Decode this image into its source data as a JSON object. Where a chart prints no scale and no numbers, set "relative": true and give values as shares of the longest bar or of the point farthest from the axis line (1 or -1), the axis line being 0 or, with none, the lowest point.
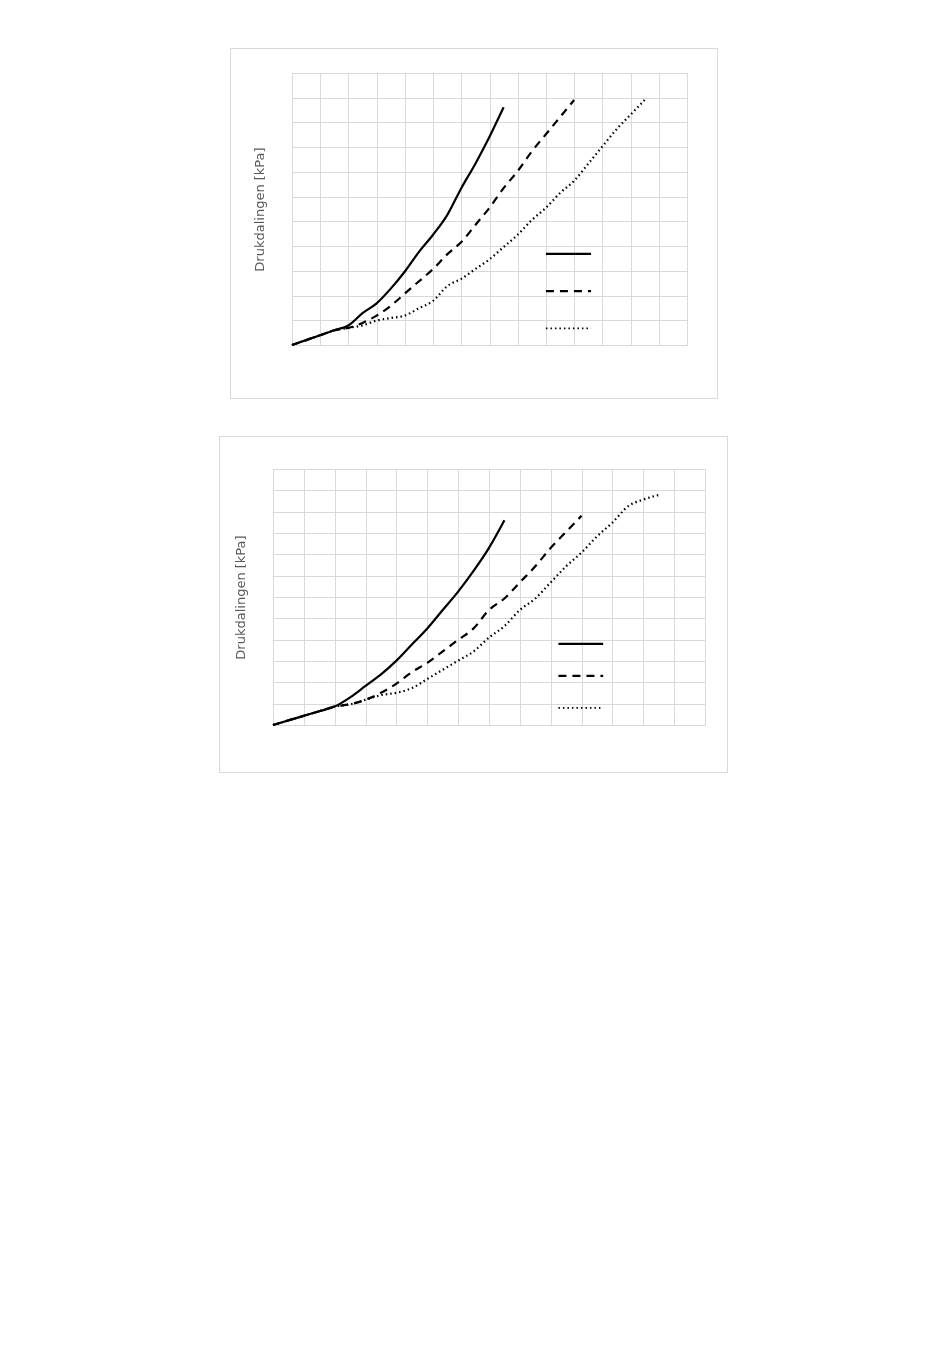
{
  "chart_data": [
    {
      "type": "line",
      "ylabel": "Drukdalingen [kPa]",
      "relative": true,
      "grid": true,
      "tick_labels": false,
      "categories": [
        null,
        null,
        null,
        null,
        null,
        null,
        null,
        null,
        null,
        null,
        null,
        null,
        null,
        null,
        null,
        null,
        null,
        null,
        null,
        null,
        null,
        null,
        null,
        null,
        null,
        null,
        null,
        null,
        null
      ],
      "series": [
        {
          "color": "#000000",
          "line_style": "solid",
          "values": [
            0,
            0.02,
            0.04,
            0.06,
            0.08,
            0.13,
            0.17,
            0.23,
            0.3,
            0.38,
            0.45,
            0.53,
            0.64,
            0.74,
            0.85,
            0.97,
            null,
            null,
            null,
            null,
            null,
            null,
            null,
            null,
            null,
            null,
            null,
            null,
            null
          ]
        },
        {
          "color": "#000000",
          "line_style": "dashed",
          "values": [
            0,
            0.02,
            0.04,
            0.06,
            0.07,
            0.09,
            0.12,
            0.16,
            0.21,
            0.26,
            0.31,
            0.37,
            0.42,
            0.49,
            0.56,
            0.64,
            0.71,
            0.79,
            0.86,
            0.93,
            1,
            null,
            null,
            null,
            null,
            null,
            null,
            null,
            null
          ]
        },
        {
          "color": "#000000",
          "line_style": "dotted",
          "values": [
            0,
            0.02,
            0.04,
            0.06,
            0.07,
            0.08,
            0.1,
            0.11,
            0.12,
            0.15,
            0.18,
            0.24,
            0.27,
            0.31,
            0.35,
            0.4,
            0.45,
            0.51,
            0.56,
            0.62,
            0.67,
            0.74,
            0.81,
            0.88,
            0.94,
            1,
            null,
            null,
            null
          ]
        }
      ]
    },
    {
      "type": "line",
      "ylabel": "Drukdalingen [kPa]",
      "relative": true,
      "grid": true,
      "tick_labels": false,
      "categories": [
        null,
        null,
        null,
        null,
        null,
        null,
        null,
        null,
        null,
        null,
        null,
        null,
        null,
        null,
        null,
        null,
        null,
        null,
        null,
        null,
        null,
        null,
        null,
        null,
        null,
        null,
        null,
        null,
        null
      ],
      "series": [
        {
          "color": "#000000",
          "line_style": "solid",
          "values": [
            0,
            0.02,
            0.04,
            0.06,
            0.08,
            0.12,
            0.17,
            0.22,
            0.28,
            0.35,
            0.42,
            0.5,
            0.58,
            0.67,
            0.77,
            0.89,
            null,
            null,
            null,
            null,
            null,
            null,
            null,
            null,
            null,
            null,
            null,
            null,
            null
          ]
        },
        {
          "color": "#000000",
          "line_style": "dashed",
          "values": [
            0,
            0.02,
            0.04,
            0.06,
            0.08,
            0.09,
            0.11,
            0.14,
            0.18,
            0.23,
            0.27,
            0.32,
            0.37,
            0.42,
            0.5,
            0.55,
            0.62,
            0.69,
            0.77,
            0.84,
            0.91,
            null,
            null,
            null,
            null,
            null,
            null,
            null,
            null
          ]
        },
        {
          "color": "#000000",
          "line_style": "dotted",
          "values": [
            0,
            0.02,
            0.04,
            0.06,
            0.08,
            0.09,
            0.11,
            0.13,
            0.14,
            0.16,
            0.2,
            0.24,
            0.28,
            0.32,
            0.38,
            0.43,
            0.5,
            0.55,
            0.62,
            0.69,
            0.75,
            0.82,
            0.88,
            0.95,
            0.98,
            1,
            null,
            null,
            null
          ]
        }
      ]
    }
  ]
}
